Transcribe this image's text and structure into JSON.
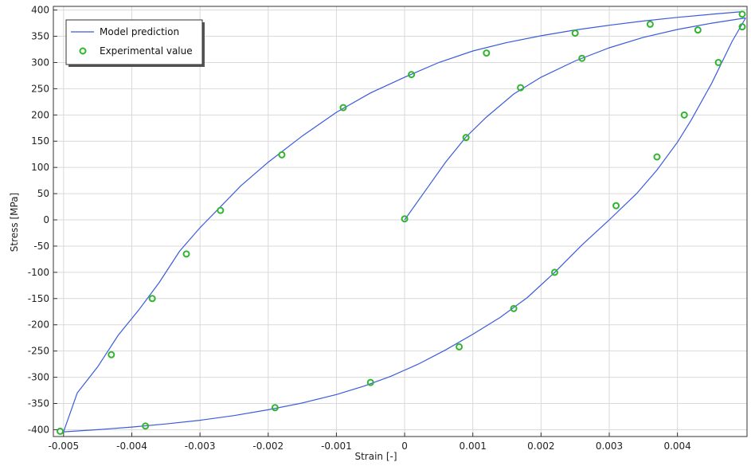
{
  "chart_data": {
    "type": "line",
    "title": "",
    "xlabel": "Strain [-]",
    "ylabel": "Stress [MPa]",
    "xlim": [
      -0.00515,
      0.00502
    ],
    "ylim": [
      -413,
      407
    ],
    "grid": true,
    "legend_position": "top-left",
    "x_ticks": [
      -0.005,
      -0.004,
      -0.003,
      -0.002,
      -0.001,
      0,
      0.001,
      0.002,
      0.003,
      0.004
    ],
    "x_tick_labels": [
      "-0.005",
      "-0.004",
      "-0.003",
      "-0.002",
      "-0.001",
      "0",
      "0.001",
      "0.002",
      "0.003",
      "0.004"
    ],
    "y_ticks": [
      400,
      350,
      300,
      250,
      200,
      150,
      100,
      50,
      0,
      -50,
      -100,
      -150,
      -200,
      -250,
      -300,
      -350,
      -400
    ],
    "y_tick_labels": [
      "400",
      "350",
      "300",
      "250",
      "200",
      "150",
      "100",
      "50",
      "0",
      "-50",
      "-100",
      "-150",
      "-200",
      "-250",
      "-300",
      "-350",
      "-400"
    ],
    "series": [
      {
        "name": "Model prediction",
        "style": "line",
        "color": "#3b5bdb",
        "segments": [
          {
            "x": [
              0,
              0.0003,
              0.0006,
              0.0009,
              0.0012,
              0.0016,
              0.002,
              0.0025,
              0.003,
              0.0035,
              0.004,
              0.0045,
              0.005
            ],
            "y": [
              0,
              55,
              110,
              158,
              196,
              240,
              272,
              303,
              328,
              348,
              363,
              375,
              385
            ]
          },
          {
            "x": [
              0.005,
              0.0048,
              0.0045,
              0.0042,
              0.004,
              0.0037,
              0.0034,
              0.003,
              0.0026,
              0.0022,
              0.0018,
              0.0014,
              0.001,
              0.0006,
              0.0002,
              -0.0002,
              -0.0006,
              -0.001,
              -0.0015,
              -0.002,
              -0.0025,
              -0.003,
              -0.0035,
              -0.004,
              -0.0045,
              -0.005
            ],
            "y": [
              385,
              340,
              260,
              190,
              148,
              95,
              50,
              0,
              -48,
              -100,
              -148,
              -186,
              -218,
              -248,
              -275,
              -298,
              -317,
              -333,
              -349,
              -362,
              -373,
              -382,
              -389,
              -395,
              -400,
              -404
            ]
          },
          {
            "x": [
              -0.005,
              -0.0048,
              -0.0045,
              -0.0042,
              -0.0039,
              -0.0036,
              -0.0033,
              -0.003,
              -0.0027,
              -0.0024,
              -0.002,
              -0.0015,
              -0.001,
              -0.0005,
              0,
              0.0005,
              0.001,
              0.0015,
              0.002,
              0.0025,
              0.003,
              0.0035,
              0.004,
              0.0045,
              0.00495
            ],
            "y": [
              -404,
              -330,
              -280,
              -220,
              -172,
              -120,
              -60,
              -15,
              25,
              65,
              110,
              160,
              205,
              242,
              272,
              300,
              322,
              338,
              351,
              362,
              371,
              379,
              386,
              392,
              397
            ]
          }
        ]
      },
      {
        "name": "Experimental value",
        "style": "markers",
        "color": "#2fb52f",
        "x": [
          0,
          0.0009,
          0.0017,
          0.0026,
          0.0043,
          0.00495,
          0.00495,
          0.0046,
          0.0041,
          0.0037,
          0.0031,
          0.0022,
          0.0016,
          0.0008,
          -0.0005,
          -0.0019,
          -0.0038,
          -0.00505,
          -0.0043,
          -0.0037,
          -0.0032,
          -0.0027,
          -0.0018,
          -0.0009,
          0.0001,
          0.0012,
          0.0025,
          0.0036
        ],
        "y": [
          2,
          157,
          252,
          308,
          362,
          368,
          392,
          300,
          200,
          120,
          27,
          -100,
          -169,
          -242,
          -310,
          -358,
          -393,
          -403,
          -257,
          -150,
          -65,
          18,
          124,
          214,
          277,
          318,
          356,
          373
        ]
      }
    ]
  }
}
